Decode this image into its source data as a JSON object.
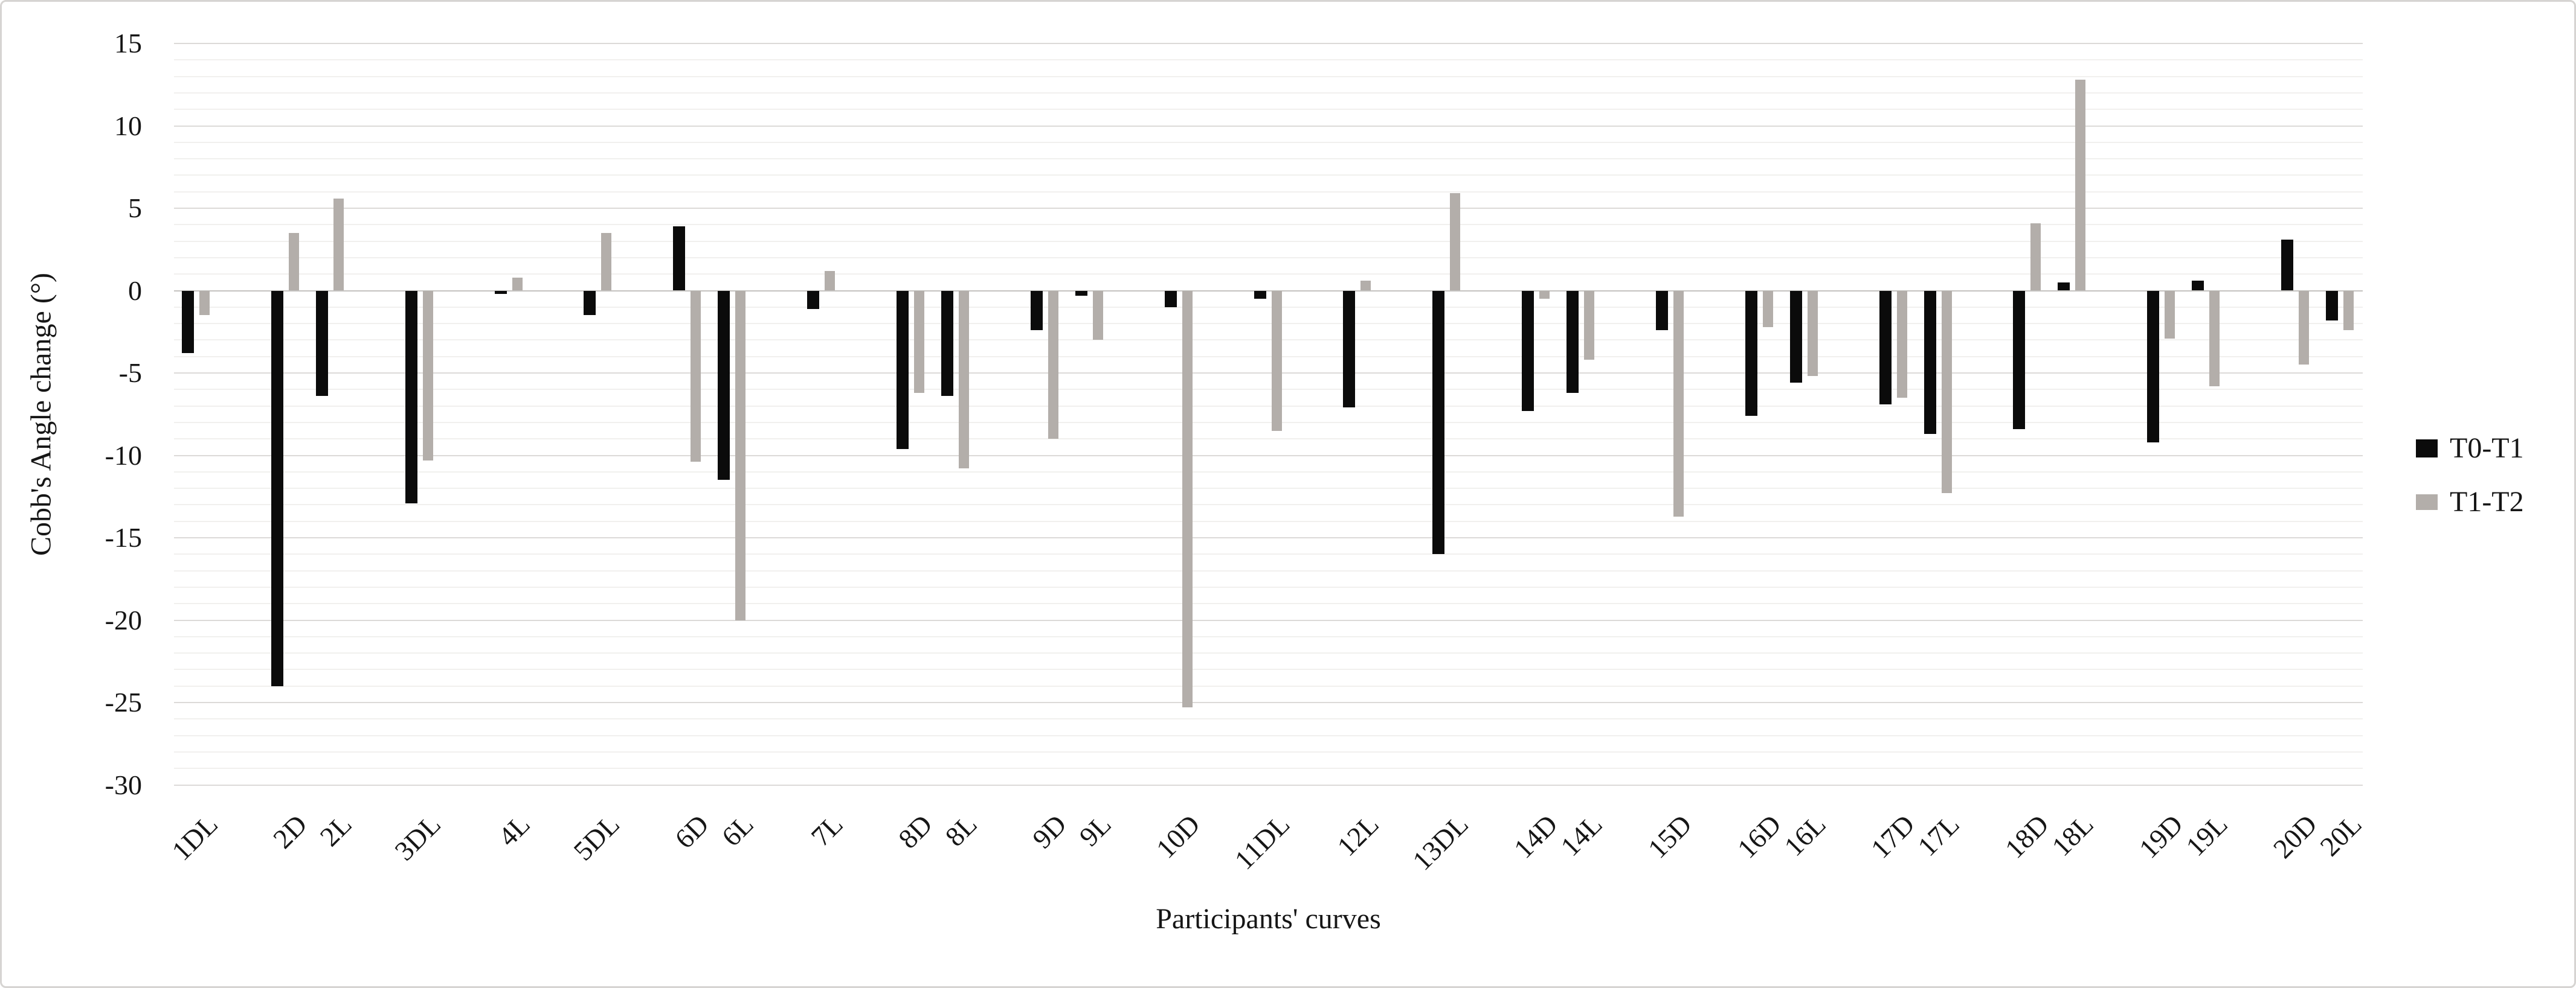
{
  "chart_data": {
    "type": "bar",
    "title": "",
    "xlabel": "Participants' curves",
    "ylabel": "Cobb's Angle change (°)",
    "ylim": [
      -30,
      15
    ],
    "y_major_step": 5,
    "y_minor_step": 1,
    "y_ticks": [
      15,
      10,
      5,
      0,
      -5,
      -10,
      -15,
      -20,
      -25,
      -30
    ],
    "grid": "on",
    "legend_position": "right",
    "categories": [
      "1DL",
      "2D",
      "2L",
      "3DL",
      "4L",
      "5DL",
      "6D",
      "6L",
      "7L",
      "8D",
      "8L",
      "9D",
      "9L",
      "10D",
      "11DL",
      "12L",
      "13DL",
      "14D",
      "14L",
      "15D",
      "16D",
      "16L",
      "17D",
      "17L",
      "18D",
      "18L",
      "19D",
      "19L",
      "20D",
      "20L"
    ],
    "participant_groups": [
      [
        "1DL"
      ],
      [
        "2D",
        "2L"
      ],
      [
        "3DL"
      ],
      [
        "4L"
      ],
      [
        "5DL"
      ],
      [
        "6D",
        "6L"
      ],
      [
        "7L"
      ],
      [
        "8D",
        "8L"
      ],
      [
        "9D",
        "9L"
      ],
      [
        "10D"
      ],
      [
        "11DL"
      ],
      [
        "12L"
      ],
      [
        "13DL"
      ],
      [
        "14D",
        "14L"
      ],
      [
        "15D"
      ],
      [
        "16D",
        "16L"
      ],
      [
        "17D",
        "17L"
      ],
      [
        "18D",
        "18L"
      ],
      [
        "19D",
        "19L"
      ],
      [
        "20D",
        "20L"
      ]
    ],
    "series": [
      {
        "name": "T0-T1",
        "color": "#0b0b0b",
        "values": [
          -3.8,
          -24,
          -6.4,
          -12.9,
          -0.2,
          -1.5,
          3.9,
          -11.5,
          -1.1,
          -9.6,
          -6.4,
          -2.4,
          -0.3,
          -1,
          -0.5,
          -7.1,
          -16,
          -7.3,
          -6.2,
          -2.4,
          -7.6,
          -5.6,
          -6.9,
          -8.7,
          -8.4,
          0.5,
          -9.2,
          0.6,
          3.1,
          -1.8
        ]
      },
      {
        "name": "T1-T2",
        "color": "#b3aeaa",
        "values": [
          -1.5,
          3.5,
          5.6,
          -10.3,
          0.8,
          3.5,
          -10.4,
          -20,
          1.2,
          -6.2,
          -10.8,
          -9,
          -3,
          -25.3,
          -8.5,
          0.6,
          5.9,
          -0.5,
          -4.2,
          -13.7,
          -2.2,
          -5.2,
          -6.5,
          -12.3,
          4.1,
          12.8,
          -2.9,
          -5.8,
          -4.5,
          -2.4
        ]
      }
    ]
  }
}
